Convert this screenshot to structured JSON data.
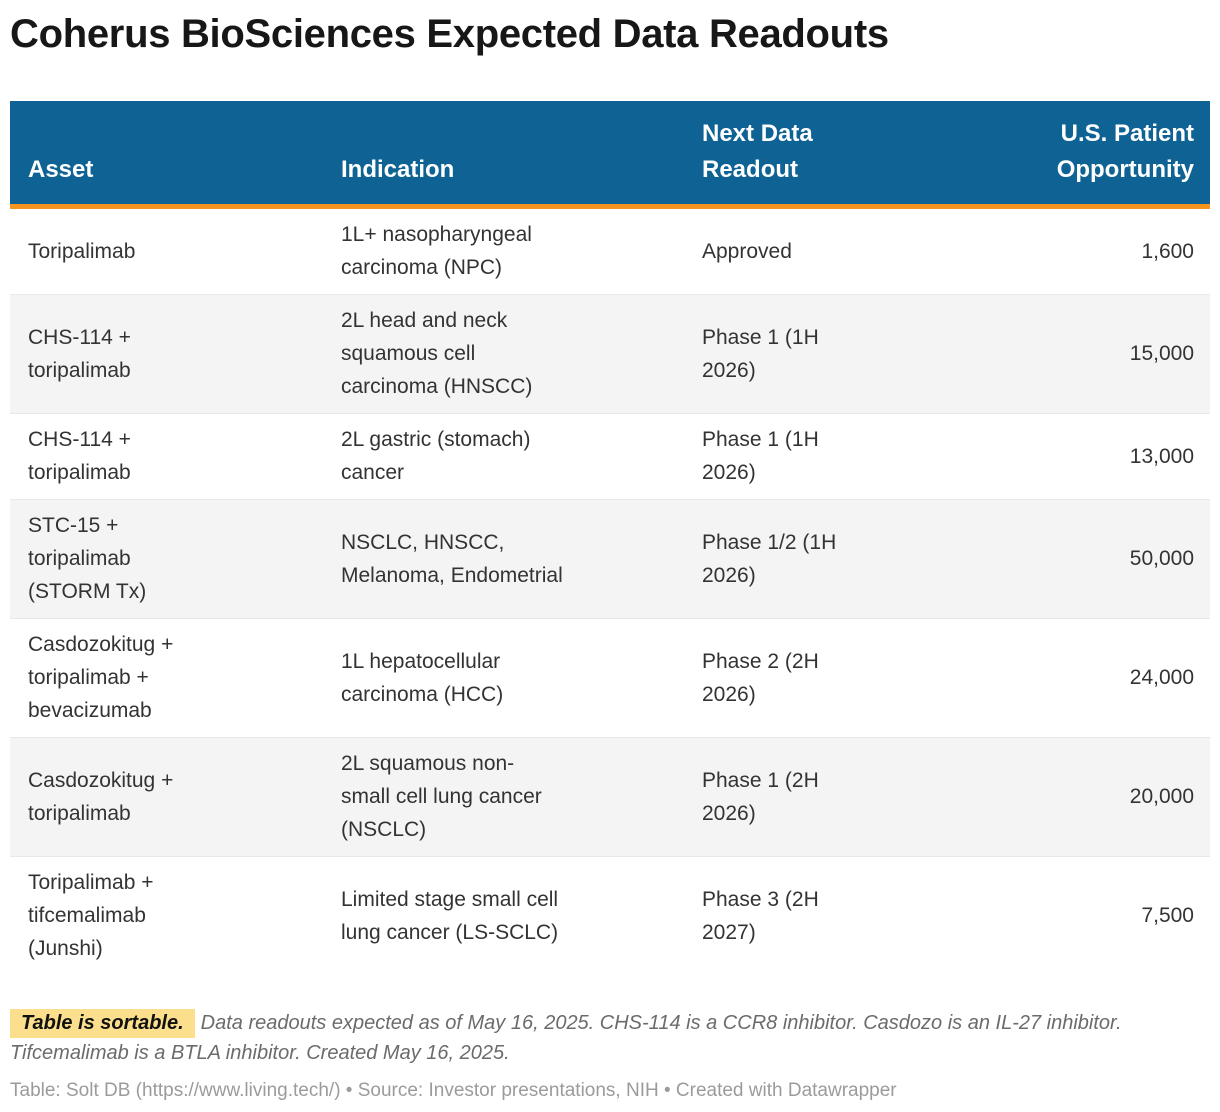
{
  "title": "Coherus BioSciences Expected Data Readouts",
  "colors": {
    "header_bg": "#0e6394",
    "accent_orange": "#f7941e",
    "highlight_yellow": "#fbdf8d",
    "row_stripe": "#f4f4f4",
    "body_text": "#333333",
    "note_text": "#6b6b6b",
    "attribution_text": "#9b9b9b"
  },
  "table": {
    "columns": [
      {
        "key": "asset",
        "label": "Asset",
        "align": "left"
      },
      {
        "key": "indication",
        "label": "Indication",
        "align": "left"
      },
      {
        "key": "readout",
        "label": "Next Data\nReadout",
        "align": "left"
      },
      {
        "key": "opportunity",
        "label": "U.S. Patient\nOpportunity",
        "align": "right"
      }
    ],
    "rows": [
      {
        "asset": "Toripalimab",
        "indication": "1L+ nasopharyngeal\ncarcinoma (NPC)",
        "readout": "Approved",
        "opportunity": "1,600"
      },
      {
        "asset": "CHS-114 +\ntoripalimab",
        "indication": "2L head and neck\nsquamous cell\ncarcinoma (HNSCC)",
        "readout": "Phase 1 (1H\n2026)",
        "opportunity": "15,000"
      },
      {
        "asset": "CHS-114 +\ntoripalimab",
        "indication": "2L gastric (stomach)\ncancer",
        "readout": "Phase 1 (1H\n2026)",
        "opportunity": "13,000"
      },
      {
        "asset": "STC-15 +\ntoripalimab\n(STORM Tx)",
        "indication": "NSCLC, HNSCC,\nMelanoma, Endometrial",
        "readout": "Phase 1/2 (1H\n2026)",
        "opportunity": "50,000"
      },
      {
        "asset": "Casdozokitug +\ntoripalimab +\nbevacizumab",
        "indication": "1L hepatocellular\ncarcinoma (HCC)",
        "readout": "Phase 2 (2H\n2026)",
        "opportunity": "24,000"
      },
      {
        "asset": "Casdozokitug +\ntoripalimab",
        "indication": "2L squamous non-\nsmall cell lung cancer\n(NSCLC)",
        "readout": "Phase 1 (2H\n2026)",
        "opportunity": "20,000"
      },
      {
        "asset": "Toripalimab +\ntifcemalimab\n(Junshi)",
        "indication": "Limited stage small cell\nlung cancer (LS-SCLC)",
        "readout": "Phase 3 (2H\n2027)",
        "opportunity": "7,500"
      }
    ]
  },
  "footnote": {
    "badge": "Table is sortable.",
    "text": "Data readouts expected as of May 16, 2025. CHS-114 is a CCR8 inhibitor. Casdozo is an IL-27 inhibitor. Tifcemalimab is a BTLA inhibitor. Created May 16, 2025."
  },
  "attribution": "Table: Solt DB (https://www.living.tech/) • Source: Investor presentations, NIH • Created with Datawrapper",
  "chart_data": {
    "type": "table",
    "title": "Coherus BioSciences Expected Data Readouts",
    "columns": [
      "Asset",
      "Indication",
      "Next Data Readout",
      "U.S. Patient Opportunity"
    ],
    "rows": [
      [
        "Toripalimab",
        "1L+ nasopharyngeal carcinoma (NPC)",
        "Approved",
        1600
      ],
      [
        "CHS-114 + toripalimab",
        "2L head and neck squamous cell carcinoma (HNSCC)",
        "Phase 1 (1H 2026)",
        15000
      ],
      [
        "CHS-114 + toripalimab",
        "2L gastric (stomach) cancer",
        "Phase 1 (1H 2026)",
        13000
      ],
      [
        "STC-15 + toripalimab (STORM Tx)",
        "NSCLC, HNSCC, Melanoma, Endometrial",
        "Phase 1/2 (1H 2026)",
        50000
      ],
      [
        "Casdozokitug + toripalimab + bevacizumab",
        "1L hepatocellular carcinoma (HCC)",
        "Phase 2 (2H 2026)",
        24000
      ],
      [
        "Casdozokitug + toripalimab",
        "2L squamous non-small cell lung cancer (NSCLC)",
        "Phase 1 (2H 2026)",
        20000
      ],
      [
        "Toripalimab + tifcemalimab (Junshi)",
        "Limited stage small cell lung cancer (LS-SCLC)",
        "Phase 3 (2H 2027)",
        7500
      ]
    ],
    "layout": {
      "sortable": true,
      "striped_rows": true,
      "numeric_column_align": "right"
    }
  }
}
